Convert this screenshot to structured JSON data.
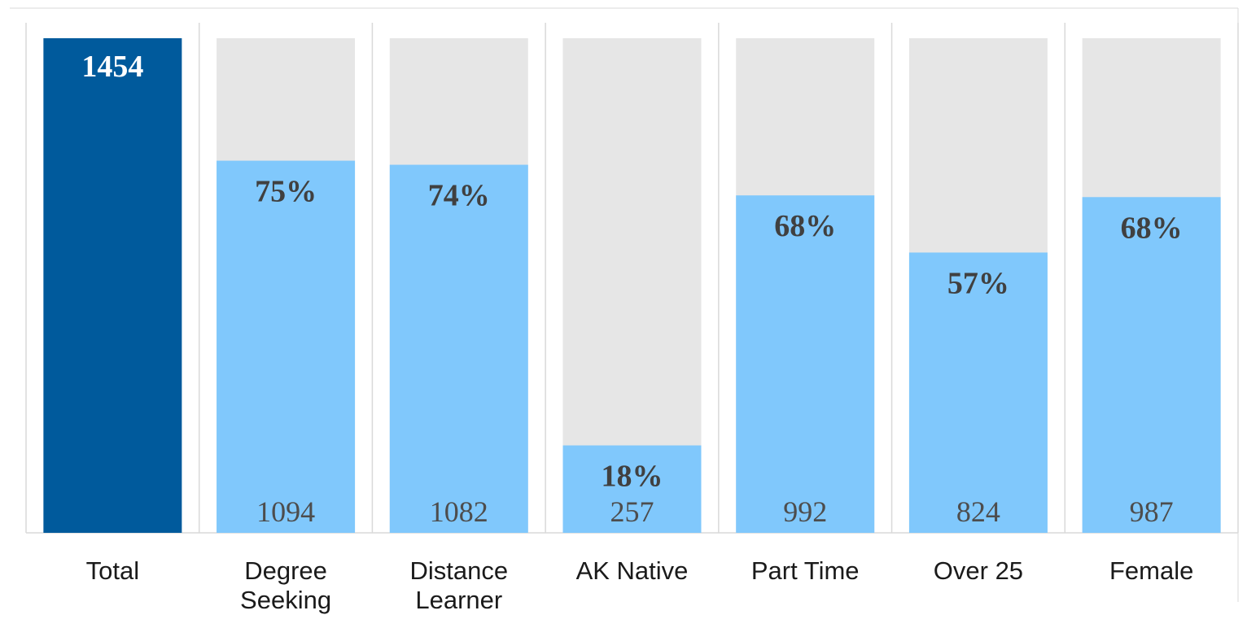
{
  "chart_data": {
    "type": "bar",
    "categories": [
      [
        "Total"
      ],
      [
        "Degree",
        "Seeking"
      ],
      [
        "Distance",
        "Learner"
      ],
      [
        "AK Native"
      ],
      [
        "Part Time"
      ],
      [
        "Over 25"
      ],
      [
        "Female"
      ]
    ],
    "total": {
      "value": 1454,
      "label": "1454"
    },
    "subgroups": [
      {
        "count": 1094,
        "count_label": "1094",
        "percent": 75,
        "percent_label": "75%"
      },
      {
        "count": 1082,
        "count_label": "1082",
        "percent": 74,
        "percent_label": "74%"
      },
      {
        "count": 257,
        "count_label": "257",
        "percent": 18,
        "percent_label": "18%"
      },
      {
        "count": 992,
        "count_label": "992",
        "percent": 68,
        "percent_label": "68%"
      },
      {
        "count": 824,
        "count_label": "824",
        "percent": 57,
        "percent_label": "57%"
      },
      {
        "count": 987,
        "count_label": "987",
        "percent": 68,
        "percent_label": "68%"
      }
    ],
    "ylim": [
      0,
      1454
    ],
    "grid": false,
    "legend": "none",
    "colors": {
      "total_bar": "#005a9c",
      "subgroup_bar": "#80c8fc",
      "background_bar": "#e6e6e6",
      "separator": "#d9d9d9"
    }
  }
}
